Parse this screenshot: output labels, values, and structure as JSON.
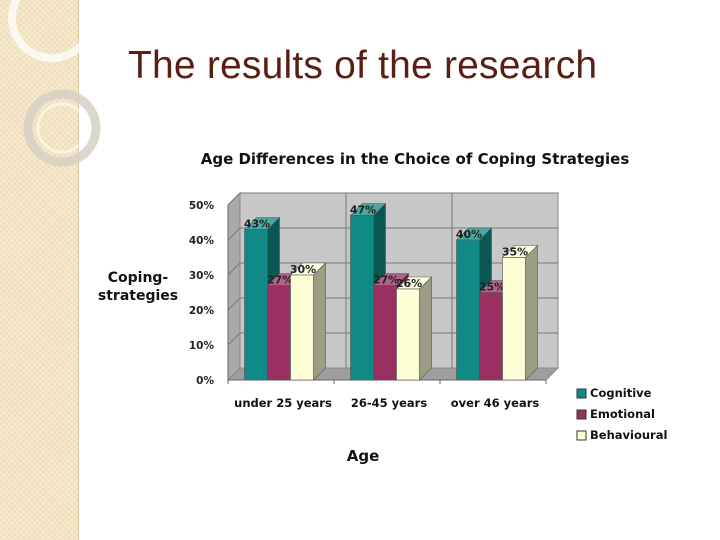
{
  "slide": {
    "title": "The results of the research"
  },
  "colors": {
    "title": "#5a1f12",
    "sidebar": "#f3e4c2"
  },
  "chart_data": {
    "type": "bar",
    "title": "Age Differences in the Choice of Coping Strategies",
    "xlabel": "Age",
    "ylabel": "Coping-strategies",
    "categories": [
      "under 25 years",
      "26-45 years",
      "over 46 years"
    ],
    "series": [
      {
        "name": "Cognitive",
        "values": [
          43,
          47,
          40
        ],
        "color": "#0f8a86"
      },
      {
        "name": "Emotional",
        "values": [
          27,
          27,
          25
        ],
        "color": "#9a2f62"
      },
      {
        "name": "Behavioural",
        "values": [
          30,
          26,
          35
        ],
        "color": "#fdfdd6"
      }
    ],
    "data_labels": [
      [
        "43%",
        "27%",
        "30%"
      ],
      [
        "47%",
        "27%",
        "26%"
      ],
      [
        "40%",
        "25%",
        "35%"
      ]
    ],
    "y_ticks": [
      "0%",
      "10%",
      "20%",
      "30%",
      "40%",
      "50%"
    ],
    "ylim": [
      0,
      50
    ],
    "grid": true,
    "legend_position": "bottom-right",
    "style": "3d-clustered"
  }
}
